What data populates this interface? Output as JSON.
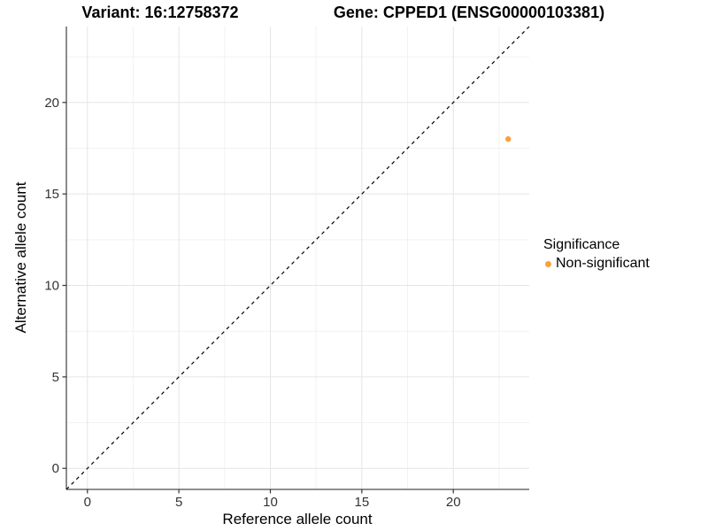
{
  "titles": {
    "variant": "Variant: 16:12758372",
    "gene": "Gene: CPPED1 (ENSG00000103381)"
  },
  "chart_data": {
    "type": "scatter",
    "title_left": "Variant: 16:12758372",
    "title_right": "Gene: CPPED1 (ENSG00000103381)",
    "xlabel": "Reference allele count",
    "ylabel": "Alternative allele count",
    "xlim": [
      -1.15,
      24.15
    ],
    "ylim": [
      -1.15,
      24.15
    ],
    "xticks": [
      0,
      5,
      10,
      15,
      20
    ],
    "yticks": [
      0,
      5,
      10,
      15,
      20
    ],
    "xticks_minor": [
      2.5,
      7.5,
      12.5,
      17.5,
      22.5
    ],
    "yticks_minor": [
      2.5,
      7.5,
      12.5,
      17.5,
      22.5
    ],
    "grid": true,
    "points": [
      {
        "x": 23,
        "y": 18,
        "series": "Non-significant"
      }
    ],
    "identity_line": {
      "slope": 1,
      "intercept": 0,
      "style": "dashed"
    },
    "legend": {
      "title": "Significance",
      "position": "right",
      "items": [
        {
          "label": "Non-significant",
          "color": "#F9A13C"
        }
      ]
    }
  },
  "colors": {
    "point": "#F9A13C",
    "grid_major": "#E5E5E5",
    "grid_minor": "#F2F2F2",
    "axis_line": "#4D4D4D",
    "tick_mark": "#333333",
    "tick_label": "#333333",
    "identity_line": "#000000",
    "background": "#FFFFFF"
  }
}
